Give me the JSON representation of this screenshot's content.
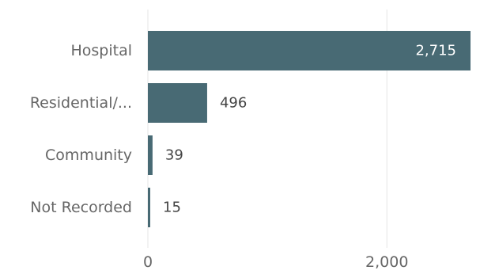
{
  "chart_data": {
    "type": "bar",
    "orientation": "horizontal",
    "categories": [
      "Hospital",
      "Residential/...",
      "Community",
      "Not Recorded"
    ],
    "values": [
      2715,
      496,
      39,
      15
    ],
    "value_labels": [
      "2,715",
      "496",
      "39",
      "15"
    ],
    "x_ticks": [
      0,
      2000
    ],
    "x_tick_labels": [
      "0",
      "2,000"
    ],
    "xlim": [
      0,
      2700
    ],
    "grid": true,
    "bar_color": "#486a74",
    "title": "",
    "xlabel": "",
    "ylabel": ""
  }
}
